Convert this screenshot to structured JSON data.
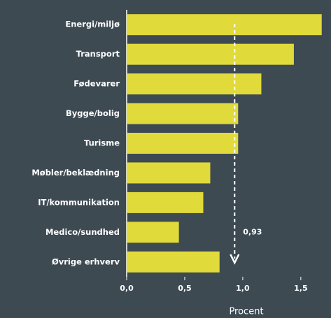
{
  "chart_data": {
    "type": "bar",
    "orientation": "horizontal",
    "categories": [
      "Energi/miljø",
      "Transport",
      "Fødevarer",
      "Bygge/bolig",
      "Turisme",
      "Møbler/beklædning",
      "IT/kommunikation",
      "Medico/sundhed",
      "Øvrige erhverv"
    ],
    "values": [
      1.68,
      1.44,
      1.16,
      0.96,
      0.96,
      0.72,
      0.66,
      0.45,
      0.8
    ],
    "color": "#e1da3b",
    "xlim": [
      0,
      1.76
    ],
    "xticks": [
      {
        "value": 0,
        "label": "0,0"
      },
      {
        "value": 0.5,
        "label": "0,5"
      },
      {
        "value": 1,
        "label": "1,0"
      },
      {
        "value": 1.5,
        "label": "1,5"
      }
    ],
    "x_label": "Procent",
    "reference": {
      "value": 0.93,
      "label": "0,93"
    }
  }
}
